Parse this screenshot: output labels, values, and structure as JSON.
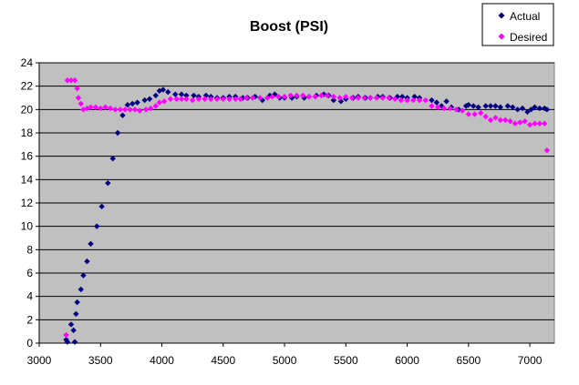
{
  "chart_data": {
    "type": "scatter",
    "title": "Boost (PSI)",
    "xlabel": "",
    "ylabel": "",
    "xlim": [
      3000,
      7200
    ],
    "ylim": [
      0,
      24
    ],
    "xticks": [
      3000,
      3500,
      4000,
      4500,
      5000,
      5500,
      6000,
      6500,
      7000
    ],
    "yticks": [
      0,
      2,
      4,
      6,
      8,
      10,
      12,
      14,
      16,
      18,
      20,
      22,
      24
    ],
    "grid": "horizontal",
    "plot_background": "#C0C0C0",
    "legend": "top-right",
    "series": [
      {
        "name": "Actual",
        "color": "#000080",
        "marker": "diamond",
        "points": [
          [
            3220,
            0.3
          ],
          [
            3230,
            0.1
          ],
          [
            3260,
            1.6
          ],
          [
            3280,
            1.1
          ],
          [
            3290,
            0.1
          ],
          [
            3300,
            2.5
          ],
          [
            3310,
            3.5
          ],
          [
            3340,
            4.6
          ],
          [
            3360,
            5.8
          ],
          [
            3390,
            7.0
          ],
          [
            3420,
            8.5
          ],
          [
            3470,
            10.0
          ],
          [
            3510,
            11.7
          ],
          [
            3560,
            13.7
          ],
          [
            3600,
            15.8
          ],
          [
            3640,
            18.0
          ],
          [
            3680,
            19.5
          ],
          [
            3720,
            20.4
          ],
          [
            3760,
            20.5
          ],
          [
            3800,
            20.6
          ],
          [
            3860,
            20.8
          ],
          [
            3900,
            20.9
          ],
          [
            3950,
            21.2
          ],
          [
            3980,
            21.6
          ],
          [
            4010,
            21.7
          ],
          [
            4050,
            21.5
          ],
          [
            4110,
            21.3
          ],
          [
            4160,
            21.3
          ],
          [
            4200,
            21.2
          ],
          [
            4260,
            21.2
          ],
          [
            4300,
            21.1
          ],
          [
            4360,
            21.2
          ],
          [
            4400,
            21.1
          ],
          [
            4450,
            21.0
          ],
          [
            4500,
            21.0
          ],
          [
            4550,
            21.1
          ],
          [
            4600,
            21.1
          ],
          [
            4660,
            21.0
          ],
          [
            4700,
            21.0
          ],
          [
            4760,
            21.1
          ],
          [
            4820,
            20.8
          ],
          [
            4880,
            21.2
          ],
          [
            4920,
            21.3
          ],
          [
            4960,
            21.0
          ],
          [
            5000,
            21.0
          ],
          [
            5060,
            21.0
          ],
          [
            5100,
            21.1
          ],
          [
            5160,
            21.0
          ],
          [
            5200,
            21.1
          ],
          [
            5260,
            21.2
          ],
          [
            5320,
            21.3
          ],
          [
            5360,
            21.2
          ],
          [
            5400,
            20.8
          ],
          [
            5460,
            20.7
          ],
          [
            5500,
            20.9
          ],
          [
            5560,
            21.0
          ],
          [
            5600,
            21.1
          ],
          [
            5660,
            21.0
          ],
          [
            5700,
            21.0
          ],
          [
            5760,
            21.1
          ],
          [
            5800,
            21.1
          ],
          [
            5860,
            21.0
          ],
          [
            5920,
            21.1
          ],
          [
            5960,
            21.1
          ],
          [
            6000,
            21.0
          ],
          [
            6060,
            21.1
          ],
          [
            6100,
            21.0
          ],
          [
            6200,
            20.8
          ],
          [
            6240,
            20.6
          ],
          [
            6280,
            20.3
          ],
          [
            6320,
            20.7
          ],
          [
            6360,
            20.2
          ],
          [
            6420,
            20.0
          ],
          [
            6480,
            20.3
          ],
          [
            6500,
            20.4
          ],
          [
            6540,
            20.3
          ],
          [
            6580,
            20.2
          ],
          [
            6640,
            20.3
          ],
          [
            6680,
            20.3
          ],
          [
            6720,
            20.3
          ],
          [
            6760,
            20.2
          ],
          [
            6820,
            20.3
          ],
          [
            6860,
            20.2
          ],
          [
            6900,
            20.0
          ],
          [
            6940,
            20.1
          ],
          [
            6980,
            19.8
          ],
          [
            7010,
            20.0
          ],
          [
            7040,
            20.2
          ],
          [
            7080,
            20.1
          ],
          [
            7120,
            20.1
          ],
          [
            7140,
            20.0
          ]
        ]
      },
      {
        "name": "Desired",
        "color": "#FF00FF",
        "marker": "diamond",
        "points": [
          [
            3220,
            0.7
          ],
          [
            3230,
            22.5
          ],
          [
            3260,
            22.5
          ],
          [
            3290,
            22.5
          ],
          [
            3310,
            21.8
          ],
          [
            3320,
            21.0
          ],
          [
            3340,
            20.5
          ],
          [
            3360,
            20.0
          ],
          [
            3390,
            20.1
          ],
          [
            3420,
            20.2
          ],
          [
            3460,
            20.2
          ],
          [
            3500,
            20.1
          ],
          [
            3540,
            20.2
          ],
          [
            3580,
            20.1
          ],
          [
            3620,
            20.0
          ],
          [
            3660,
            20.0
          ],
          [
            3700,
            20.0
          ],
          [
            3740,
            20.0
          ],
          [
            3780,
            20.0
          ],
          [
            3820,
            19.9
          ],
          [
            3870,
            20.0
          ],
          [
            3910,
            20.1
          ],
          [
            3950,
            20.3
          ],
          [
            3980,
            20.6
          ],
          [
            4020,
            20.7
          ],
          [
            4070,
            20.9
          ],
          [
            4120,
            20.9
          ],
          [
            4160,
            20.9
          ],
          [
            4200,
            20.9
          ],
          [
            4250,
            20.8
          ],
          [
            4300,
            20.9
          ],
          [
            4350,
            20.9
          ],
          [
            4400,
            20.9
          ],
          [
            4450,
            20.9
          ],
          [
            4500,
            20.9
          ],
          [
            4550,
            20.9
          ],
          [
            4600,
            20.9
          ],
          [
            4640,
            20.9
          ],
          [
            4690,
            21.0
          ],
          [
            4740,
            21.0
          ],
          [
            4800,
            21.0
          ],
          [
            4860,
            21.0
          ],
          [
            4900,
            21.1
          ],
          [
            4950,
            21.1
          ],
          [
            5000,
            21.1
          ],
          [
            5050,
            21.2
          ],
          [
            5100,
            21.2
          ],
          [
            5150,
            21.2
          ],
          [
            5200,
            21.1
          ],
          [
            5250,
            21.1
          ],
          [
            5300,
            21.2
          ],
          [
            5350,
            21.2
          ],
          [
            5400,
            21.1
          ],
          [
            5450,
            21.0
          ],
          [
            5500,
            21.1
          ],
          [
            5550,
            21.0
          ],
          [
            5600,
            21.0
          ],
          [
            5650,
            21.0
          ],
          [
            5700,
            21.0
          ],
          [
            5750,
            21.0
          ],
          [
            5800,
            21.0
          ],
          [
            5850,
            21.0
          ],
          [
            5900,
            20.9
          ],
          [
            5950,
            20.8
          ],
          [
            6000,
            20.8
          ],
          [
            6050,
            20.8
          ],
          [
            6100,
            20.8
          ],
          [
            6150,
            20.8
          ],
          [
            6200,
            20.3
          ],
          [
            6250,
            20.2
          ],
          [
            6300,
            20.1
          ],
          [
            6350,
            20.1
          ],
          [
            6400,
            20.0
          ],
          [
            6450,
            19.9
          ],
          [
            6500,
            19.6
          ],
          [
            6550,
            19.6
          ],
          [
            6600,
            19.7
          ],
          [
            6640,
            19.4
          ],
          [
            6680,
            19.1
          ],
          [
            6720,
            19.3
          ],
          [
            6760,
            19.1
          ],
          [
            6800,
            19.1
          ],
          [
            6840,
            19.0
          ],
          [
            6880,
            18.8
          ],
          [
            6920,
            18.9
          ],
          [
            6960,
            19.0
          ],
          [
            7000,
            18.7
          ],
          [
            7040,
            18.8
          ],
          [
            7080,
            18.8
          ],
          [
            7120,
            18.8
          ],
          [
            7140,
            16.5
          ]
        ]
      }
    ]
  }
}
